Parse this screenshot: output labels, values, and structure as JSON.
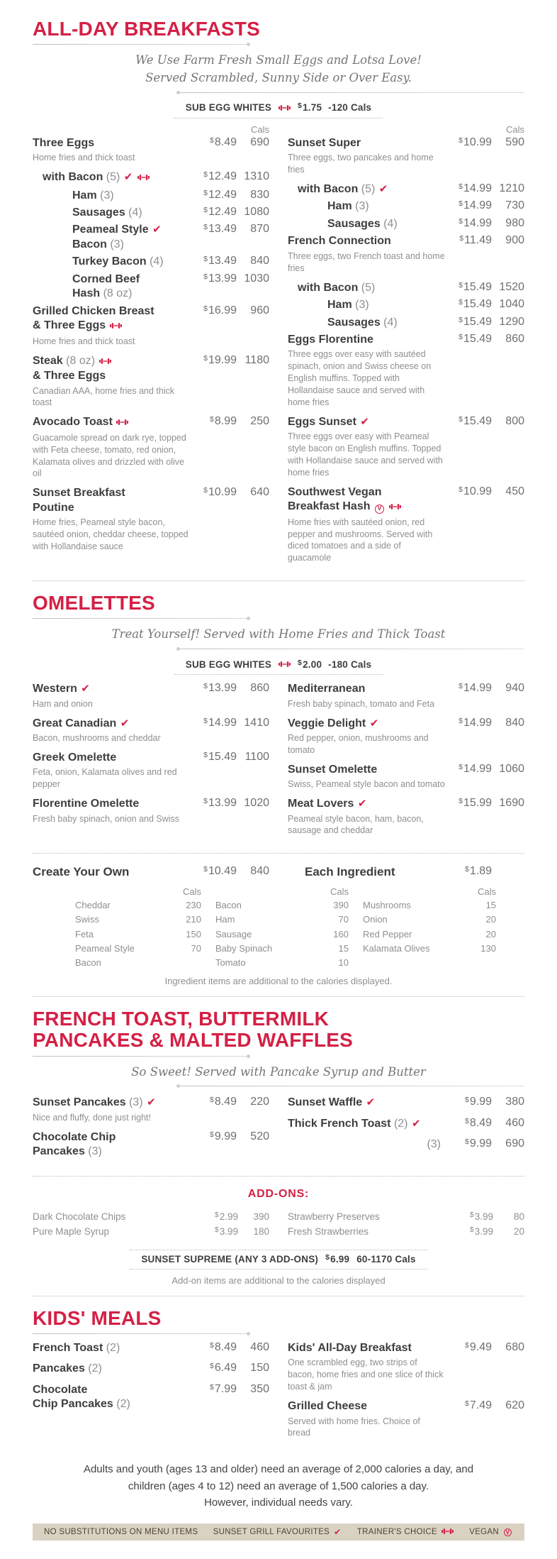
{
  "labels": {
    "cals": "Cals"
  },
  "colors": {
    "accent": "#d42045",
    "legend_bar_bg": "#d9d2c2"
  },
  "menu": {
    "sections": [
      {
        "title": "ALL-DAY BREAKFASTS",
        "tagline": [
          "We Use Farm Fresh Small Eggs and Lotsa Love!",
          "Served Scrambled, Sunny Side or Over Easy."
        ],
        "sub": {
          "label": "SUB EGG WHITES",
          "icon": "dumbbell",
          "price": "1.75",
          "cals": "-120 Cals"
        },
        "columns": [
          [
            {
              "name": "Three Eggs",
              "price": "8.49",
              "cals": "690",
              "desc": "Home fries and thick toast"
            },
            {
              "name": "with Bacon (5) {check} {dumbbell}",
              "indent": 1,
              "price": "12.49",
              "cals": "1310"
            },
            {
              "name": "Ham (3)",
              "indent": 2,
              "price": "12.49",
              "cals": "830"
            },
            {
              "name": "Sausages (4)",
              "indent": 2,
              "price": "12.49",
              "cals": "1080"
            },
            {
              "name": "Peameal Style {check}\nBacon (3)",
              "indent": 2,
              "price": "13.49",
              "cals": "870"
            },
            {
              "name": "Turkey Bacon (4)",
              "indent": 2,
              "price": "13.49",
              "cals": "840"
            },
            {
              "name": "Corned Beef\nHash (8 oz)",
              "indent": 2,
              "price": "13.99",
              "cals": "1030"
            },
            {
              "name": "Grilled Chicken Breast\n& Three Eggs  {dumbbell}",
              "price": "16.99",
              "cals": "960",
              "desc": "Home fries and thick toast"
            },
            {
              "name": "Steak (8 oz) {dumbbell}\n& Three Eggs",
              "price": "19.99",
              "cals": "1180",
              "desc": "Canadian AAA, home fries and thick toast"
            },
            {
              "name": "Avocado Toast {dumbbell}",
              "price": "8.99",
              "cals": "250",
              "desc": "Guacamole spread on dark rye, topped with Feta cheese, tomato, red onion, Kalamata olives and drizzled with olive oil"
            },
            {
              "name": "Sunset Breakfast\nPoutine",
              "price": "10.99",
              "cals": "640",
              "desc": "Home fries, Peameal style bacon, sautéed onion, cheddar cheese, topped with Hollandaise sauce"
            }
          ],
          [
            {
              "name": "Sunset Super",
              "price": "10.99",
              "cals": "590",
              "desc": "Three eggs, two pancakes and home fries"
            },
            {
              "name": "with Bacon (5) {check}",
              "indent": 1,
              "price": "14.99",
              "cals": "1210"
            },
            {
              "name": "Ham (3)",
              "indent": 2,
              "price": "14.99",
              "cals": "730"
            },
            {
              "name": "Sausages (4)",
              "indent": 2,
              "price": "14.99",
              "cals": "980"
            },
            {
              "name": "French Connection",
              "price": "11.49",
              "cals": "900",
              "desc": "Three eggs, two French toast and home fries"
            },
            {
              "name": "with Bacon (5)",
              "indent": 1,
              "price": "15.49",
              "cals": "1520"
            },
            {
              "name": "Ham (3)",
              "indent": 2,
              "price": "15.49",
              "cals": "1040"
            },
            {
              "name": "Sausages (4)",
              "indent": 2,
              "price": "15.49",
              "cals": "1290"
            },
            {
              "name": "Eggs Florentine",
              "price": "15.49",
              "cals": "860",
              "desc": "Three eggs over easy with sautéed spinach, onion and Swiss cheese on English muffins. Topped with Hollandaise sauce and served with home fries"
            },
            {
              "name": "Eggs Sunset {check}",
              "price": "15.49",
              "cals": "800",
              "desc": "Three eggs over easy with Peameal style bacon on English muffins. Topped with Hollandaise sauce and served with home fries"
            },
            {
              "name": "Southwest Vegan\nBreakfast Hash {vegan} {dumbbell}",
              "price": "10.99",
              "cals": "450",
              "desc": "Home fries with sautéed onion, red pepper and mushrooms. Served with diced tomatoes and a side of guacamole"
            }
          ]
        ]
      },
      {
        "title": "OMELETTES",
        "tagline": [
          "Treat Yourself! Served with Home Fries and Thick Toast"
        ],
        "sub": {
          "label": "SUB EGG WHITES",
          "icon": "dumbbell",
          "price": "2.00",
          "cals": "-180 Cals"
        },
        "columns": [
          [
            {
              "name": "Western {check}",
              "price": "13.99",
              "cals": "860",
              "desc": "Ham and onion"
            },
            {
              "name": "Great Canadian {check}",
              "price": "14.99",
              "cals": "1410",
              "desc": "Bacon, mushrooms and cheddar"
            },
            {
              "name": "Greek Omelette",
              "price": "15.49",
              "cals": "1100",
              "desc": "Feta, onion, Kalamata olives and red pepper"
            },
            {
              "name": "Florentine Omelette",
              "price": "13.99",
              "cals": "1020",
              "desc": "Fresh baby spinach, onion and Swiss"
            }
          ],
          [
            {
              "name": "Mediterranean",
              "price": "14.99",
              "cals": "940",
              "desc": "Fresh baby spinach, tomato and Feta"
            },
            {
              "name": "Veggie Delight {check}",
              "price": "14.99",
              "cals": "840",
              "desc": "Red pepper, onion, mushrooms and tomato"
            },
            {
              "name": "Sunset Omelette",
              "price": "14.99",
              "cals": "1060",
              "desc": "Swiss, Peameal style bacon and tomato"
            },
            {
              "name": "Meat Lovers {check}",
              "price": "15.99",
              "cals": "1690",
              "desc": "Peameal style bacon, ham, bacon, sausage and cheddar"
            }
          ]
        ]
      },
      {
        "title": "FRENCH TOAST, BUTTERMILK\nPANCAKES & MALTED WAFFLES",
        "tagline": [
          "So Sweet! Served with Pancake Syrup and Butter"
        ],
        "columns": [
          [
            {
              "name": "Sunset Pancakes (3) {check}",
              "price": "8.49",
              "cals": "220",
              "desc": "Nice and fluffy, done just right!"
            },
            {
              "name": "Chocolate Chip\nPancakes (3)",
              "price": "9.99",
              "cals": "520"
            }
          ],
          [
            {
              "name": "Sunset Waffle {check}",
              "price": "9.99",
              "cals": "380"
            },
            {
              "name": "Thick French Toast (2) {check}",
              "price": "8.49",
              "cals": "460"
            },
            {
              "name": "(3)",
              "align": "right",
              "price": "9.99",
              "cals": "690"
            }
          ]
        ]
      },
      {
        "title": "KIDS' MEALS",
        "columns": [
          [
            {
              "name": "French Toast (2)",
              "price": "8.49",
              "cals": "460"
            },
            {
              "name": "Pancakes (2)",
              "price": "6.49",
              "cals": "150"
            },
            {
              "name": "Chocolate\nChip Pancakes (2)",
              "price": "7.99",
              "cals": "350"
            }
          ],
          [
            {
              "name": "Kids' All-Day Breakfast",
              "price": "9.49",
              "cals": "680",
              "desc": "One scrambled egg, two strips of bacon, home fries and one slice of thick toast & jam"
            },
            {
              "name": "Grilled Cheese",
              "price": "7.49",
              "cals": "620",
              "desc": "Served with home fries. Choice of bread"
            }
          ]
        ]
      }
    ]
  },
  "cyo": {
    "left": {
      "name": "Create Your Own",
      "price": "10.49",
      "cals": "840"
    },
    "right": {
      "name": "Each Ingredient",
      "price": "1.89"
    },
    "groups": [
      [
        [
          "Cheddar",
          "230"
        ],
        [
          "Swiss",
          "210"
        ],
        [
          "Feta",
          "150"
        ],
        [
          "Peameal Style\nBacon",
          "70"
        ]
      ],
      [
        [
          "Bacon",
          "390"
        ],
        [
          "Ham",
          "70"
        ],
        [
          "Sausage",
          "160"
        ],
        [
          "Baby Spinach",
          "15"
        ],
        [
          "Tomato",
          "10"
        ]
      ],
      [
        [
          "Mushrooms",
          "15"
        ],
        [
          "Onion",
          "20"
        ],
        [
          "Red Pepper",
          "20"
        ],
        [
          "Kalamata Olives",
          "130"
        ]
      ]
    ],
    "note": "Ingredient items are additional to the calories displayed."
  },
  "addons": {
    "title": "ADD-ONS:",
    "columns": [
      [
        [
          "Dark Chocolate Chips",
          "2.99",
          "390"
        ],
        [
          "Pure Maple Syrup",
          "3.99",
          "180"
        ]
      ],
      [
        [
          "Strawberry Preserves",
          "3.99",
          "80"
        ],
        [
          "Fresh Strawberries",
          "3.99",
          "20"
        ]
      ]
    ],
    "supreme": {
      "label": "SUNSET SUPREME (ANY 3 ADD-ONS)",
      "price": "6.99",
      "cals": "60-1170 Cals"
    },
    "note": "Add-on items are additional to the calories displayed"
  },
  "footer": {
    "disclaimer_lines": [
      "Adults and youth (ages 13 and older) need an average of 2,000 calories a day, and",
      "children (ages 4 to 12) need an average of 1,500 calories a day.",
      "However, individual needs vary."
    ],
    "legend": [
      {
        "label": "NO SUBSTITUTIONS ON MENU ITEMS"
      },
      {
        "label": "SUNSET GRILL FAVOURITES",
        "icon": "check"
      },
      {
        "label": "TRAINER'S CHOICE",
        "icon": "dumbbell"
      },
      {
        "label": "VEGAN",
        "icon": "vegan"
      }
    ]
  }
}
